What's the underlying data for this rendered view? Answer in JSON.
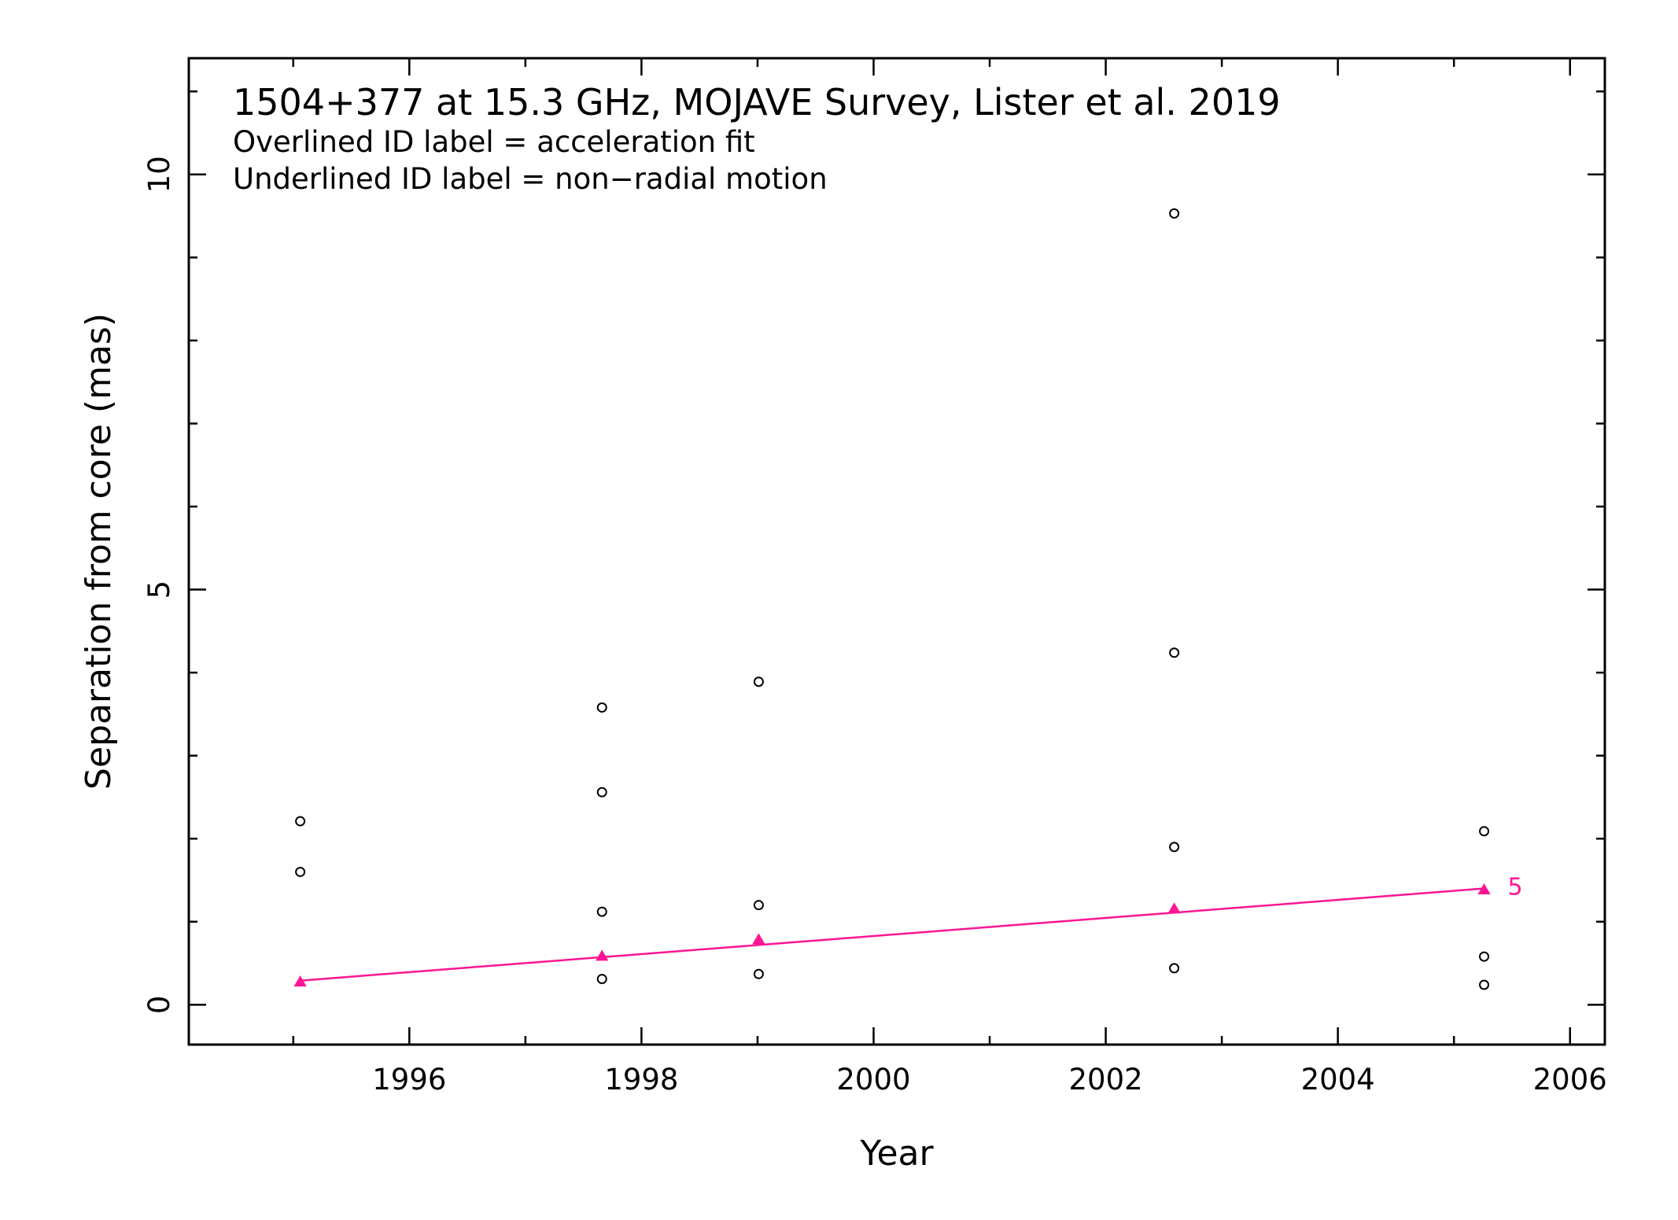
{
  "chart_data": {
    "type": "scatter",
    "title": "1504+377 at 15.3 GHz, MOJAVE Survey, Lister et al. 2019",
    "notes": [
      "Overlined ID label = acceleration fit",
      "Underlined ID label = non−radial motion"
    ],
    "xlabel": "Year",
    "ylabel": "Separation from core (mas)",
    "xlim": [
      1994.1,
      2006.3
    ],
    "ylim": [
      -0.48,
      11.4
    ],
    "x_ticks": [
      1996,
      1998,
      2000,
      2002,
      2004,
      2006
    ],
    "y_ticks": [
      0,
      5,
      10
    ],
    "x_tick_labels": [
      "1996",
      "1998",
      "2000",
      "2002",
      "2004",
      "2006"
    ],
    "y_tick_labels": [
      "0",
      "5",
      "10"
    ],
    "grid": false,
    "series": [
      {
        "marker": "open-circle",
        "color": "#000000",
        "points": [
          {
            "x": 1995.06,
            "y": 2.21
          },
          {
            "x": 1995.06,
            "y": 1.6
          },
          {
            "x": 1997.66,
            "y": 3.58
          },
          {
            "x": 1997.66,
            "y": 2.56
          },
          {
            "x": 1997.66,
            "y": 1.12
          },
          {
            "x": 1997.66,
            "y": 0.31
          },
          {
            "x": 1999.01,
            "y": 3.89
          },
          {
            "x": 1999.01,
            "y": 1.2
          },
          {
            "x": 1999.01,
            "y": 0.37
          },
          {
            "x": 2002.59,
            "y": 9.53
          },
          {
            "x": 2002.59,
            "y": 4.24
          },
          {
            "x": 2002.59,
            "y": 1.9
          },
          {
            "x": 2002.59,
            "y": 0.44
          },
          {
            "x": 2005.26,
            "y": 2.09
          },
          {
            "x": 2005.26,
            "y": 0.58
          },
          {
            "x": 2005.26,
            "y": 0.24
          }
        ]
      },
      {
        "name": "5",
        "marker": "filled-triangle",
        "color": "#ff1493",
        "points": [
          {
            "x": 1995.06,
            "y": 0.27
          },
          {
            "x": 1997.66,
            "y": 0.58
          },
          {
            "x": 1999.01,
            "y": 0.78
          },
          {
            "x": 2002.59,
            "y": 1.15
          },
          {
            "x": 2005.26,
            "y": 1.38
          }
        ],
        "fit": {
          "x": [
            1995.06,
            2005.26
          ],
          "y": [
            0.29,
            1.4
          ]
        }
      }
    ]
  }
}
